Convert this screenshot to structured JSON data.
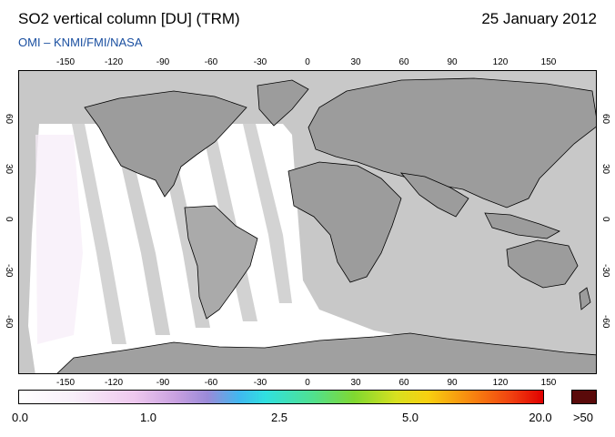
{
  "header": {
    "title": "SO2 vertical column [DU] (TRM)",
    "date": "25 January 2012",
    "subtitle": "OMI  –  KNMI/FMI/NASA"
  },
  "map": {
    "projection": "equirectangular",
    "lon_ticks_top": [
      "-150",
      "-120",
      "-90",
      "-60",
      "-30",
      "0",
      "30",
      "60",
      "90",
      "120",
      "150"
    ],
    "lon_ticks_bottom": [
      "-150",
      "-120",
      "-90",
      "-60",
      "-30",
      "0",
      "30",
      "60",
      "90",
      "120",
      "150"
    ],
    "lat_ticks": [
      "60",
      "30",
      "0",
      "-30",
      "-60"
    ],
    "colors": {
      "no_data": "#c8c8c8",
      "land": "#9c9c9c",
      "low_value": "#ffffff",
      "coast": "#000000"
    }
  },
  "colorbar": {
    "labels": [
      "0.0",
      "1.0",
      "2.5",
      "5.0",
      "20.0"
    ],
    "overflow_label": ">50",
    "overflow_color": "#5a0a0a"
  }
}
